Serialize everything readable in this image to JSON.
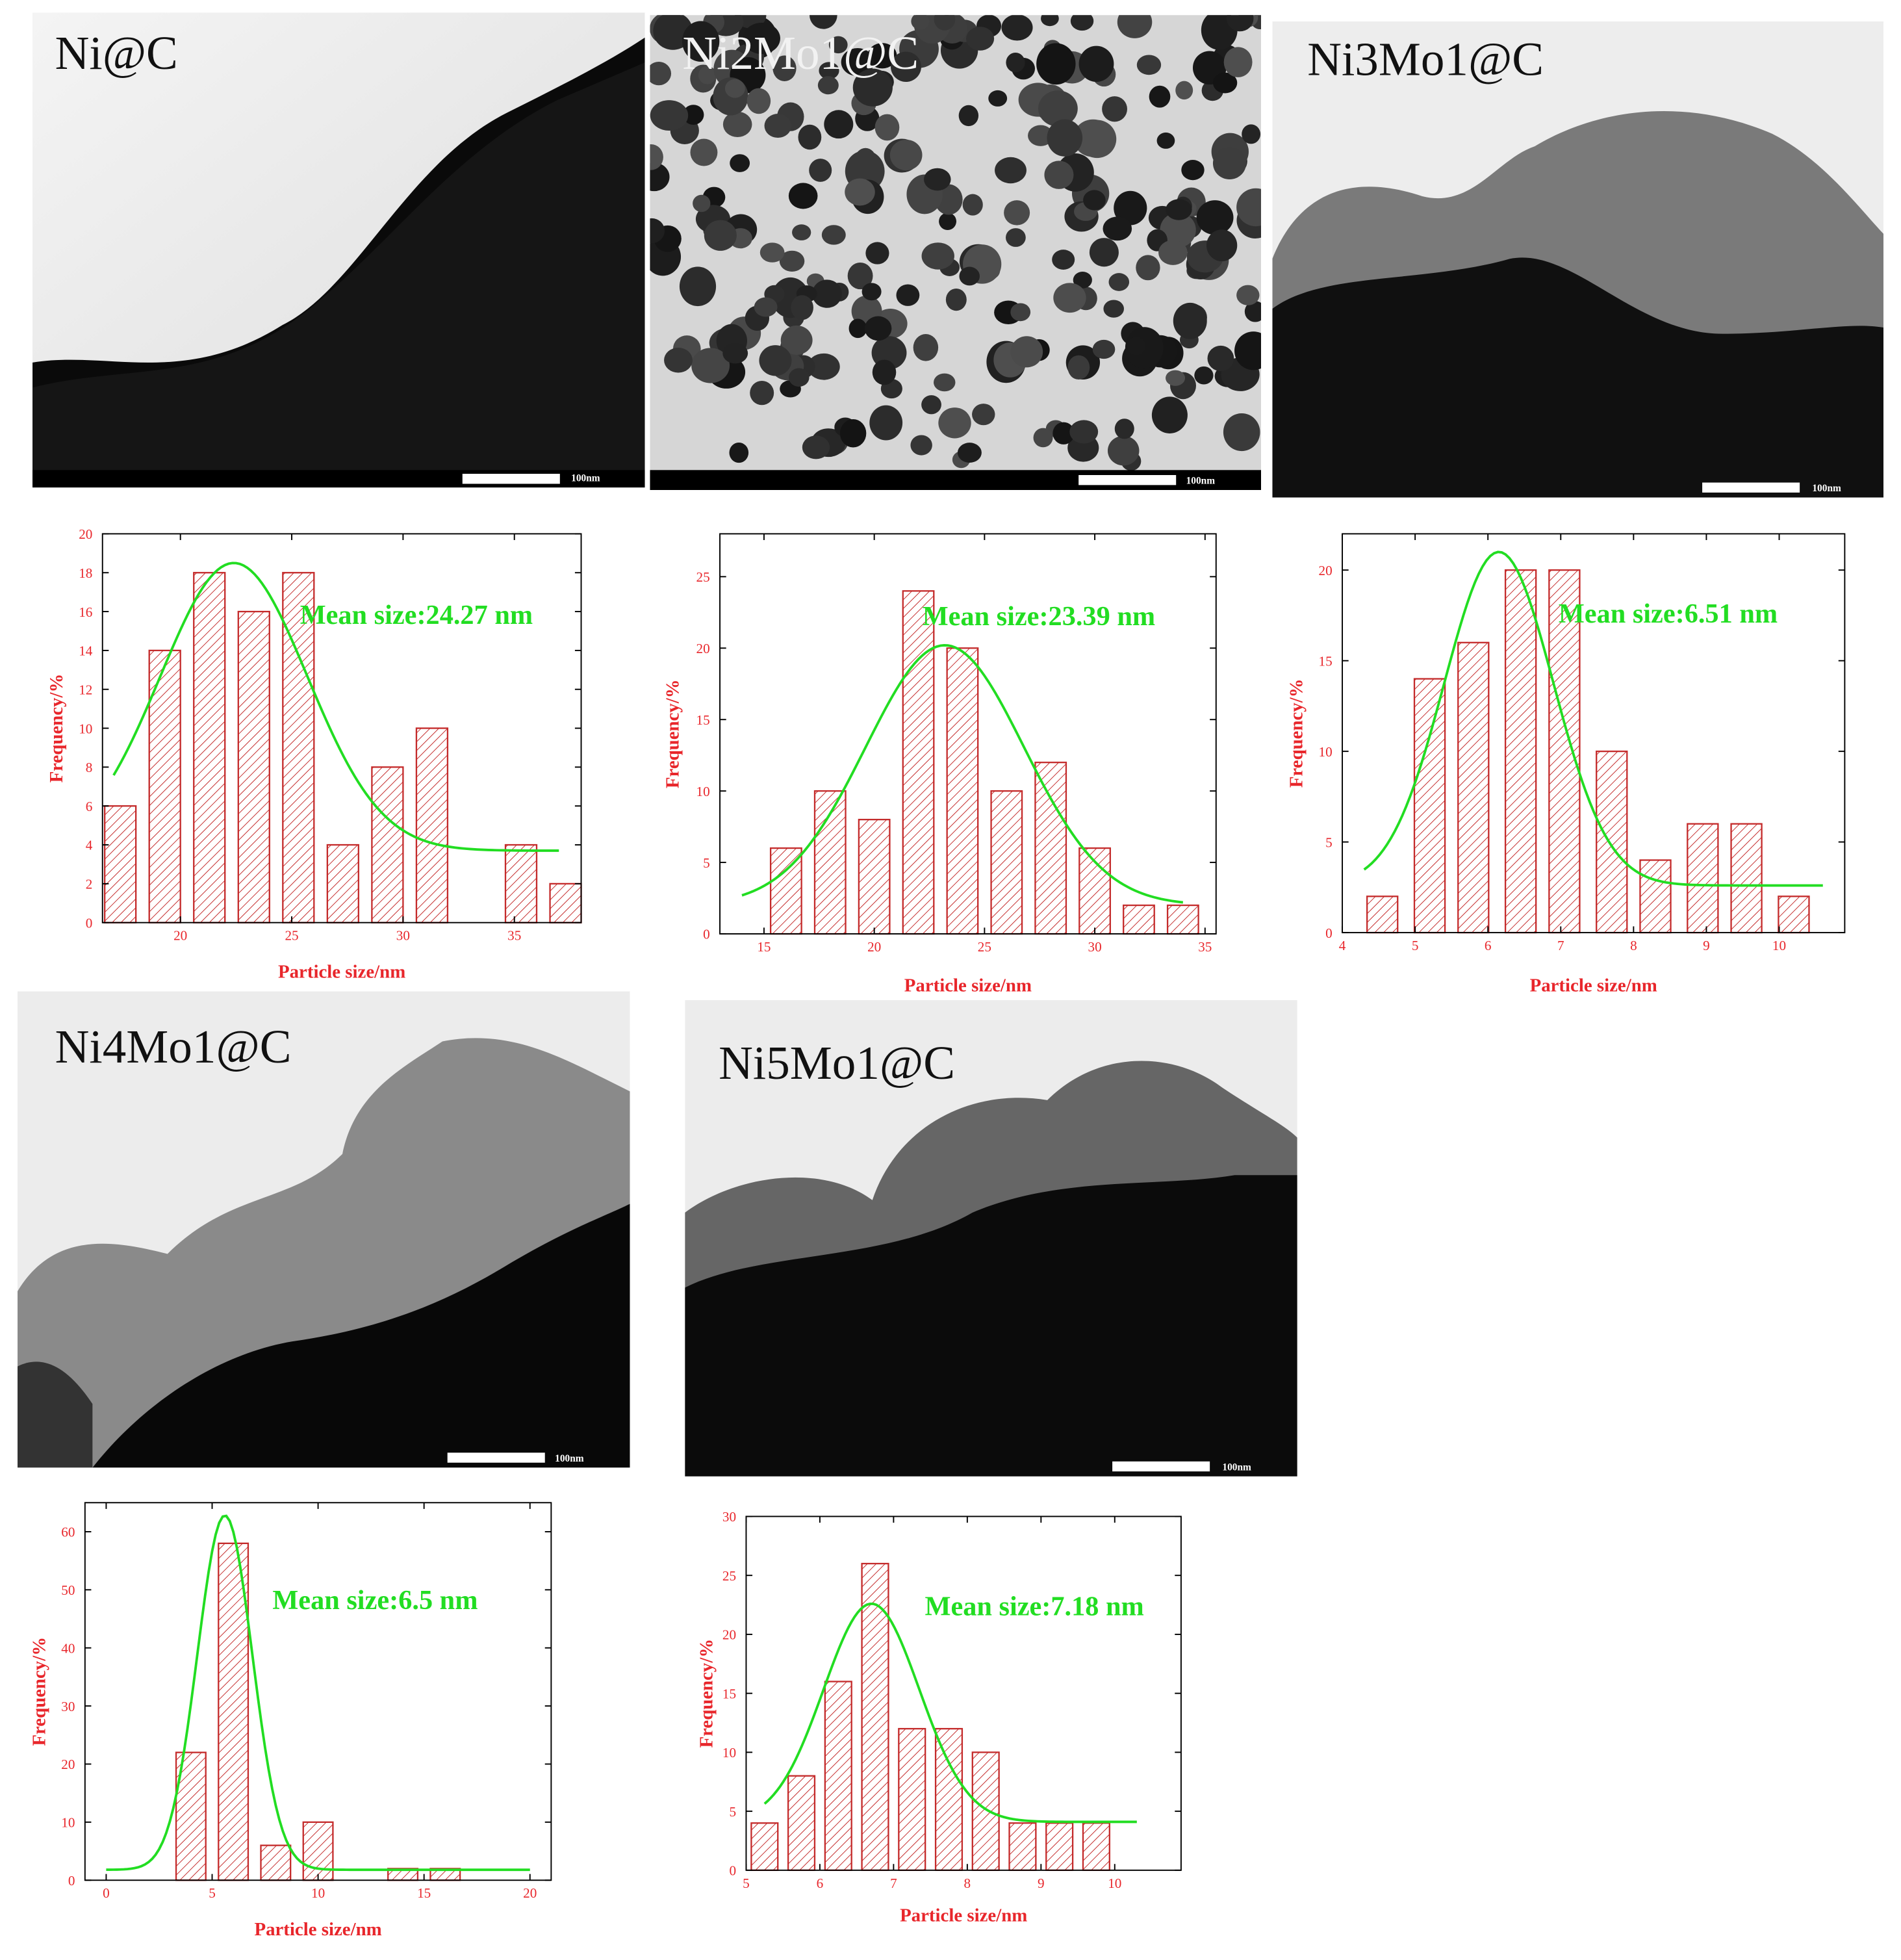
{
  "colors": {
    "axis_text": "#e8262b",
    "bar_stroke": "#c42b2b",
    "hatch": "#c42b2b",
    "fit": "#22dd22",
    "frame": "#000000"
  },
  "micrographs": [
    {
      "label": "Ni@C",
      "label_color": "#111111",
      "scale_text": "100nm"
    },
    {
      "label": "Ni2Mo1@C",
      "label_color": "#f2f2f2",
      "scale_text": "100nm"
    },
    {
      "label": "Ni3Mo1@C",
      "label_color": "#111111",
      "scale_text": "100nm"
    },
    {
      "label": "Ni4Mo1@C",
      "label_color": "#111111",
      "scale_text": "100nm"
    },
    {
      "label": "Ni5Mo1@C",
      "label_color": "#111111",
      "scale_text": "100nm"
    }
  ],
  "chart_data": [
    {
      "type": "bar",
      "xlabel": "Particle size/nm",
      "ylabel": "Frequency/%",
      "annotation": "Mean size:24.27 nm",
      "xlim": [
        16.5,
        38
      ],
      "ylim": [
        0,
        20
      ],
      "xticks": [
        20,
        25,
        30,
        35
      ],
      "yticks": [
        0,
        2,
        4,
        6,
        8,
        10,
        12,
        14,
        16,
        18,
        20
      ],
      "bin_width": 1.4,
      "bars": [
        {
          "x": 17.3,
          "value": 6
        },
        {
          "x": 19.3,
          "value": 14
        },
        {
          "x": 21.3,
          "value": 18
        },
        {
          "x": 23.3,
          "value": 16
        },
        {
          "x": 25.3,
          "value": 18
        },
        {
          "x": 27.3,
          "value": 4
        },
        {
          "x": 29.3,
          "value": 8
        },
        {
          "x": 31.3,
          "value": 10
        },
        {
          "x": 35.3,
          "value": 4
        },
        {
          "x": 37.3,
          "value": 2
        }
      ],
      "fit": {
        "type": "gaussian",
        "mean": 22.4,
        "sigma": 3.3,
        "amplitude": 14.8,
        "offset": 3.7,
        "x_range": [
          17.0,
          37.0
        ]
      }
    },
    {
      "type": "bar",
      "xlabel": "Particle size/nm",
      "ylabel": "Frequency/%",
      "annotation": "Mean size:23.39 nm",
      "xlim": [
        13,
        35.5
      ],
      "ylim": [
        0,
        28
      ],
      "xticks": [
        15,
        20,
        25,
        30,
        35
      ],
      "yticks": [
        0,
        5,
        10,
        15,
        20,
        25
      ],
      "bin_width": 1.4,
      "bars": [
        {
          "x": 16.0,
          "value": 6
        },
        {
          "x": 18.0,
          "value": 10
        },
        {
          "x": 20.0,
          "value": 8
        },
        {
          "x": 22.0,
          "value": 24
        },
        {
          "x": 24.0,
          "value": 20
        },
        {
          "x": 26.0,
          "value": 10
        },
        {
          "x": 28.0,
          "value": 12
        },
        {
          "x": 30.0,
          "value": 6
        },
        {
          "x": 32.0,
          "value": 2
        },
        {
          "x": 34.0,
          "value": 2
        }
      ],
      "fit": {
        "type": "gaussian",
        "mean": 23.2,
        "sigma": 3.6,
        "amplitude": 18.2,
        "offset": 2.0,
        "x_range": [
          14.0,
          34.0
        ]
      }
    },
    {
      "type": "bar",
      "xlabel": "Particle size/nm",
      "ylabel": "Frequency/%",
      "annotation": "Mean size:6.51 nm",
      "xlim": [
        4,
        10.9
      ],
      "ylim": [
        0,
        22
      ],
      "xticks": [
        4,
        5,
        6,
        7,
        8,
        9,
        10
      ],
      "yticks": [
        0,
        5,
        10,
        15,
        20
      ],
      "bin_width": 0.42,
      "bars": [
        {
          "x": 4.55,
          "value": 2
        },
        {
          "x": 5.2,
          "value": 14
        },
        {
          "x": 5.8,
          "value": 16
        },
        {
          "x": 6.45,
          "value": 20
        },
        {
          "x": 7.05,
          "value": 20
        },
        {
          "x": 7.7,
          "value": 10
        },
        {
          "x": 8.3,
          "value": 4
        },
        {
          "x": 8.95,
          "value": 6
        },
        {
          "x": 9.55,
          "value": 6
        },
        {
          "x": 10.2,
          "value": 2
        }
      ],
      "fit": {
        "type": "gaussian",
        "mean": 6.15,
        "sigma": 0.75,
        "amplitude": 18.4,
        "offset": 2.6,
        "x_range": [
          4.3,
          10.6
        ]
      }
    },
    {
      "type": "bar",
      "xlabel": "Particle size/nm",
      "ylabel": "Frequency/%",
      "annotation": "Mean size:6.5 nm",
      "xlim": [
        -1,
        21
      ],
      "ylim": [
        0,
        65
      ],
      "xticks": [
        0,
        5,
        10,
        15,
        20
      ],
      "yticks": [
        0,
        10,
        20,
        30,
        40,
        50,
        60
      ],
      "bin_width": 1.4,
      "bars": [
        {
          "x": 4.0,
          "value": 22
        },
        {
          "x": 6.0,
          "value": 58
        },
        {
          "x": 8.0,
          "value": 6
        },
        {
          "x": 10.0,
          "value": 10
        },
        {
          "x": 14.0,
          "value": 2
        },
        {
          "x": 16.0,
          "value": 2
        }
      ],
      "fit": {
        "type": "gaussian",
        "mean": 5.6,
        "sigma": 1.3,
        "amplitude": 61,
        "offset": 1.8,
        "x_range": [
          0,
          20
        ]
      }
    },
    {
      "type": "bar",
      "xlabel": "Particle size/nm",
      "ylabel": "Frequency/%",
      "annotation": "Mean size:7.18 nm",
      "xlim": [
        5,
        10.9
      ],
      "ylim": [
        0,
        30
      ],
      "xticks": [
        5,
        6,
        7,
        8,
        9,
        10
      ],
      "yticks": [
        0,
        5,
        10,
        15,
        20,
        25,
        30
      ],
      "bin_width": 0.36,
      "bars": [
        {
          "x": 5.25,
          "value": 4
        },
        {
          "x": 5.75,
          "value": 8
        },
        {
          "x": 6.25,
          "value": 16
        },
        {
          "x": 6.75,
          "value": 26
        },
        {
          "x": 7.25,
          "value": 12
        },
        {
          "x": 7.75,
          "value": 12
        },
        {
          "x": 8.25,
          "value": 10
        },
        {
          "x": 8.75,
          "value": 4
        },
        {
          "x": 9.25,
          "value": 4
        },
        {
          "x": 9.75,
          "value": 4
        }
      ],
      "fit": {
        "type": "gaussian",
        "mean": 6.7,
        "sigma": 0.65,
        "amplitude": 18.5,
        "offset": 4.1,
        "x_range": [
          5.25,
          10.3
        ]
      }
    }
  ]
}
